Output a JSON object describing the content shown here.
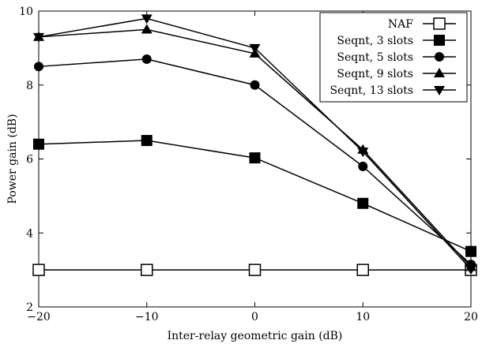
{
  "chart_data": {
    "type": "line",
    "title": "",
    "xlabel": "Inter-relay geometric gain (dB)",
    "ylabel": "Power gain (dB)",
    "xlim": [
      -20,
      20
    ],
    "ylim": [
      2,
      10
    ],
    "xticks": [
      -20,
      -10,
      0,
      10,
      20
    ],
    "xtick_labels": [
      "−20",
      "−10",
      "0",
      "10",
      "20"
    ],
    "yticks": [
      2,
      4,
      6,
      8,
      10
    ],
    "ytick_labels": [
      "2",
      "4",
      "6",
      "8",
      "10"
    ],
    "grid": false,
    "legend_position": "top-right",
    "x": [
      -20,
      -10,
      0,
      10,
      20
    ],
    "series": [
      {
        "name": "NAF",
        "marker": "open-square",
        "values": [
          3.0,
          3.0,
          3.0,
          3.0,
          3.0
        ]
      },
      {
        "name": "Seqnt, 3 slots",
        "marker": "filled-square",
        "values": [
          6.4,
          6.5,
          6.03,
          4.8,
          3.5
        ]
      },
      {
        "name": "Seqnt, 5 slots",
        "marker": "filled-circle",
        "values": [
          8.5,
          8.7,
          8.0,
          5.8,
          3.15
        ]
      },
      {
        "name": "Seqnt, 9 slots",
        "marker": "filled-triangle-up",
        "values": [
          9.3,
          9.5,
          8.85,
          6.25,
          3.08
        ]
      },
      {
        "name": "Seqnt, 13 slots",
        "marker": "filled-triangle-down",
        "values": [
          9.3,
          9.8,
          9.0,
          6.2,
          3.02
        ]
      }
    ]
  }
}
